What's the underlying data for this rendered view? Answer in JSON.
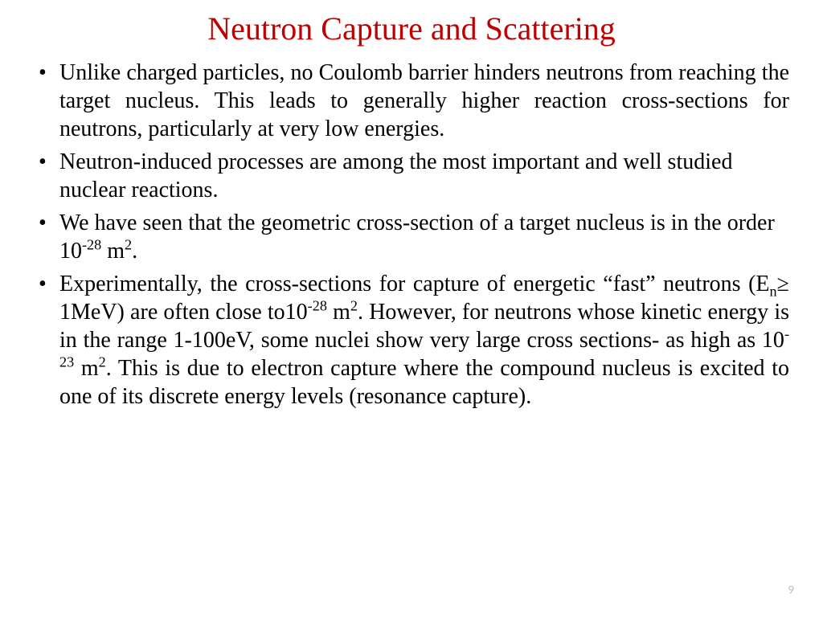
{
  "title": {
    "text": "Neutron Capture and Scattering",
    "color": "#c00000",
    "fontsize": 40
  },
  "body": {
    "color": "#000000",
    "fontsize": 28,
    "bullets": [
      {
        "justify": true,
        "segments": [
          {
            "t": "Unlike charged particles, no Coulomb barrier hinders neutrons from reaching the target nucleus. This leads to generally higher reaction cross-sections for neutrons, particularly at very low energies."
          }
        ]
      },
      {
        "justify": false,
        "segments": [
          {
            "t": "Neutron-induced processes are among the most important and well studied nuclear reactions."
          }
        ]
      },
      {
        "justify": false,
        "segments": [
          {
            "t": "We have seen that the geometric cross-section of a target nucleus is in the order 10"
          },
          {
            "t": "-28",
            "sup": true
          },
          {
            "t": " m"
          },
          {
            "t": "2",
            "sup": true
          },
          {
            "t": "."
          }
        ]
      },
      {
        "justify": true,
        "segments": [
          {
            "t": "Experimentally, the cross-sections for capture of energetic “fast” neutrons (E"
          },
          {
            "t": "n",
            "sub": true
          },
          {
            "t": "≥ 1MeV) are often close to10"
          },
          {
            "t": "-28",
            "sup": true
          },
          {
            "t": " m"
          },
          {
            "t": "2",
            "sup": true
          },
          {
            "t": ". However, for neutrons whose kinetic energy is in the range 1-100eV, some nuclei show very large cross sections- as high as 10"
          },
          {
            "t": "-23",
            "sup": true
          },
          {
            "t": " m"
          },
          {
            "t": "2",
            "sup": true
          },
          {
            "t": ". This is due to electron capture where the compound nucleus is excited to one of its discrete energy levels (resonance capture)."
          }
        ]
      }
    ]
  },
  "pageNumber": {
    "value": "9",
    "color": "#bfbfbf"
  },
  "background_color": "#ffffff"
}
